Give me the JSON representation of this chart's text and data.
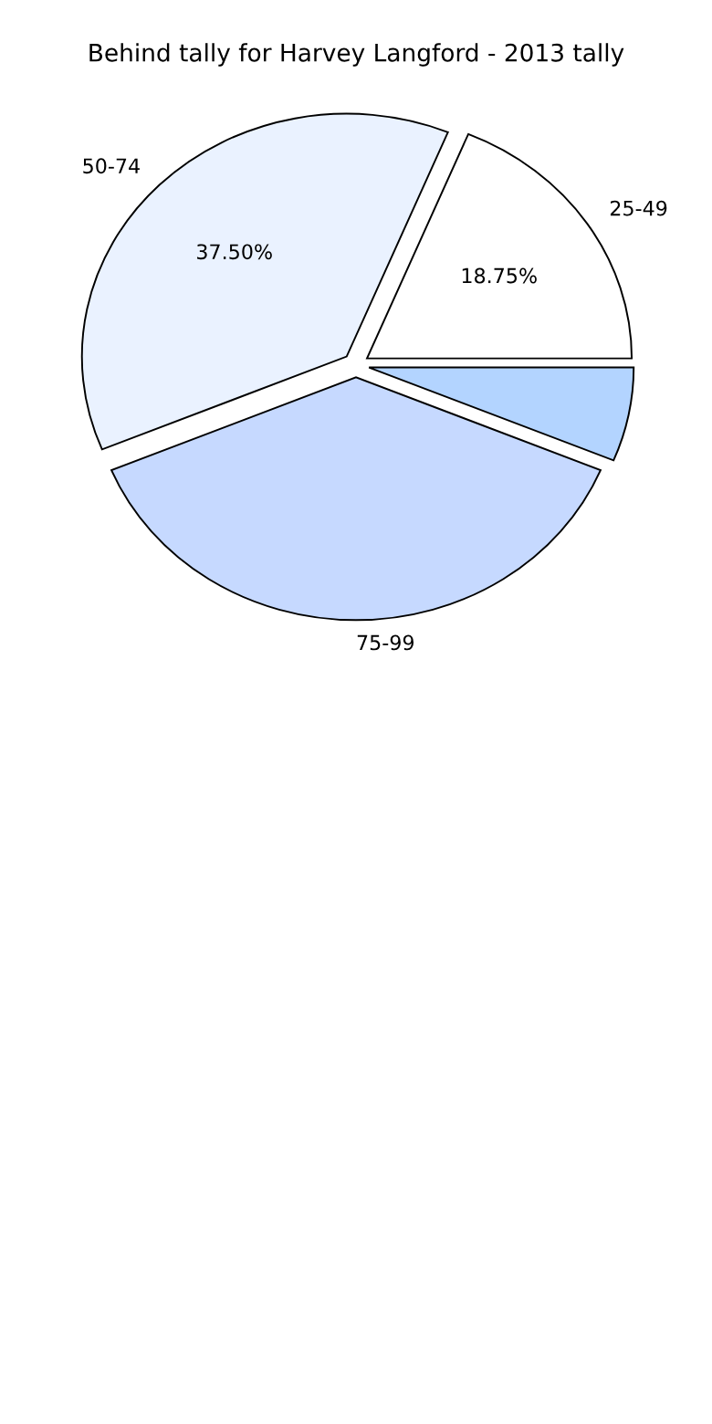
{
  "chart_data": {
    "type": "pie",
    "title": "Behind tally for Harvey Langford - 2013 tally",
    "categories": [
      "25-49",
      "50-74",
      "75-99",
      null
    ],
    "values": [
      18.75,
      37.5,
      37.5,
      6.25
    ],
    "colors": [
      "#ffffff",
      "#eaf2ff",
      "#c6d9ff",
      "#b3d4ff"
    ],
    "value_labels": [
      "18.75%",
      "37.50%",
      null,
      null
    ],
    "legend": false
  }
}
